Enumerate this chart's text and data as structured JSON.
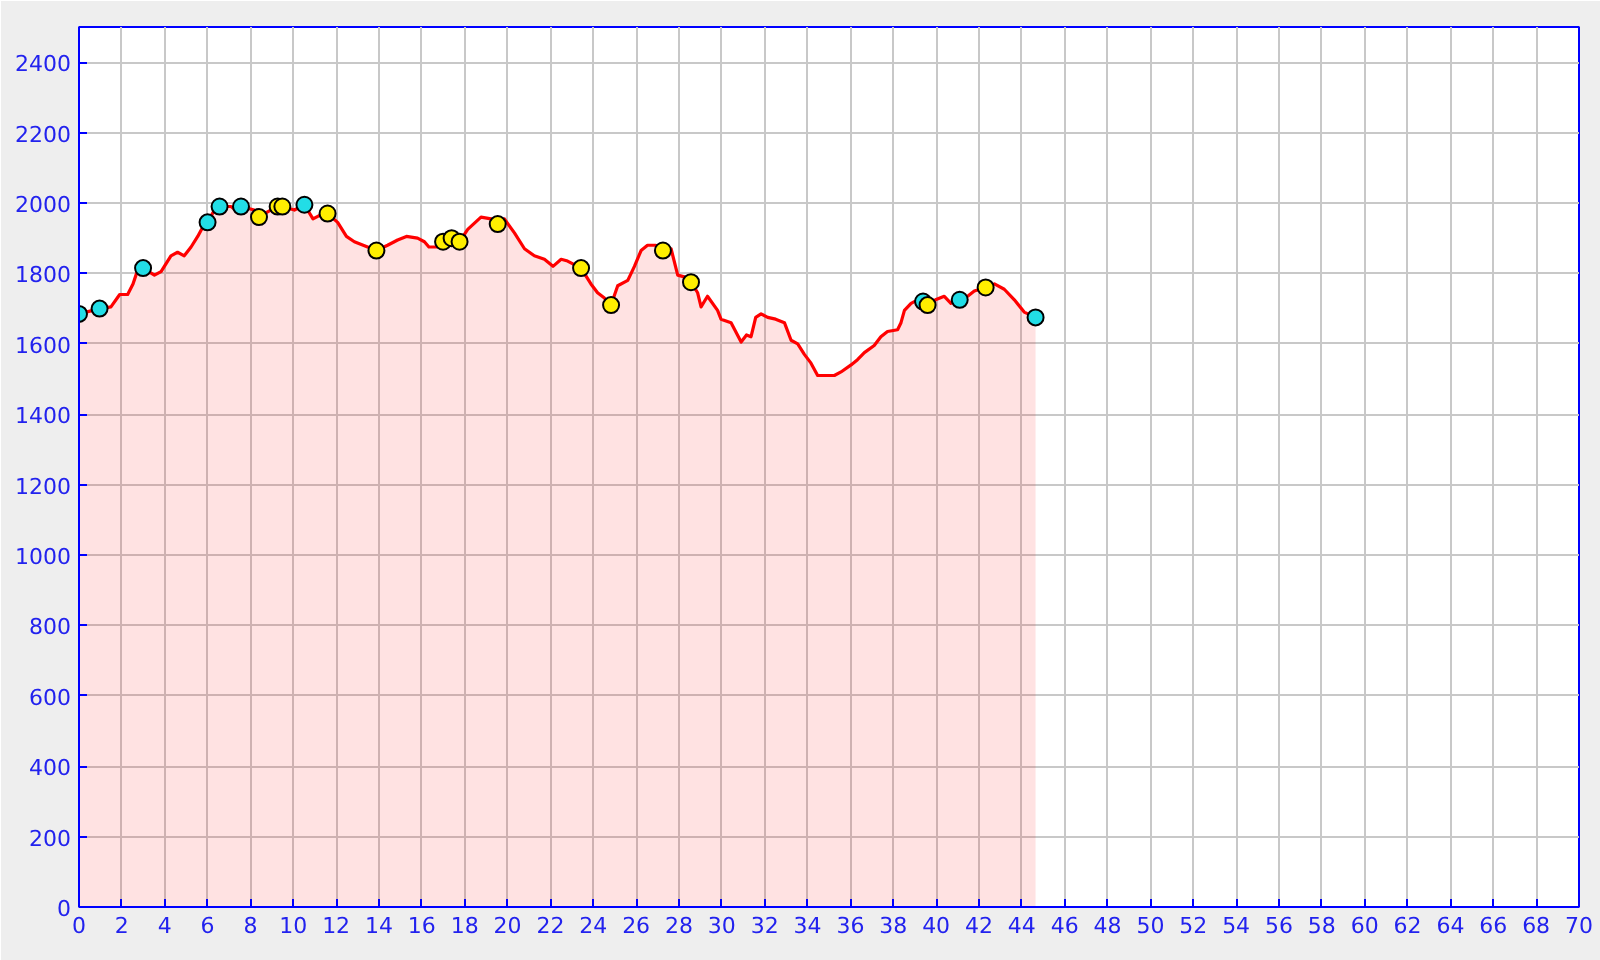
{
  "chart_data": {
    "type": "area",
    "xlim": [
      0,
      70
    ],
    "ylim": [
      0,
      2500
    ],
    "xticks": [
      0,
      2,
      4,
      6,
      8,
      10,
      12,
      14,
      16,
      18,
      20,
      22,
      24,
      26,
      28,
      30,
      32,
      34,
      36,
      38,
      40,
      42,
      44,
      46,
      48,
      50,
      52,
      54,
      56,
      58,
      60,
      62,
      64,
      66,
      68,
      70
    ],
    "yticks": [
      0,
      200,
      400,
      600,
      800,
      1000,
      1200,
      1400,
      1600,
      1800,
      2000,
      2200,
      2400
    ],
    "grid": true,
    "series": [
      {
        "color": "#ff0000",
        "line_style": "solid",
        "x": [
          0.0,
          0.96,
          1.49,
          1.9,
          2.27,
          2.52,
          2.74,
          2.99,
          3.52,
          3.83,
          4.29,
          4.6,
          4.91,
          5.23,
          5.54,
          5.76,
          6.0,
          6.32,
          6.56,
          7.09,
          7.31,
          7.56,
          8.18,
          8.4,
          8.8,
          9.27,
          9.49,
          10.05,
          10.52,
          10.92,
          11.23,
          11.6,
          12.07,
          12.48,
          12.85,
          13.47,
          13.88,
          14.4,
          14.87,
          15.28,
          15.8,
          16.12,
          16.33,
          16.74,
          16.99,
          17.39,
          17.76,
          18.14,
          18.76,
          19.23,
          19.54,
          19.85,
          20.32,
          20.79,
          21.25,
          21.72,
          22.12,
          22.5,
          22.8,
          23.43,
          23.89,
          24.2,
          24.52,
          24.83,
          25.14,
          25.61,
          25.92,
          26.23,
          26.53,
          26.91,
          27.25,
          27.63,
          27.94,
          28.25,
          28.56,
          28.87,
          29.03,
          29.33,
          29.8,
          29.96,
          30.43,
          30.9,
          31.15,
          31.36,
          31.58,
          31.83,
          32.14,
          32.51,
          32.92,
          33.23,
          33.54,
          33.85,
          34.16,
          34.47,
          35.25,
          35.56,
          36.03,
          36.33,
          36.65,
          37.11,
          37.42,
          37.73,
          38.2,
          38.36,
          38.52,
          38.83,
          39.14,
          39.39,
          39.6,
          39.97,
          40.38,
          40.69,
          41.1,
          41.47,
          41.78,
          42.31,
          42.72,
          43.18,
          43.65,
          44.11,
          44.64
        ],
        "values": [
          1685,
          1700,
          1705,
          1740,
          1740,
          1770,
          1810,
          1815,
          1795,
          1805,
          1850,
          1860,
          1850,
          1875,
          1905,
          1930,
          1945,
          1980,
          1990,
          1990,
          1980,
          1990,
          1980,
          1960,
          1975,
          1990,
          1990,
          1980,
          1995,
          1955,
          1965,
          1970,
          1945,
          1905,
          1890,
          1875,
          1865,
          1880,
          1895,
          1905,
          1900,
          1890,
          1875,
          1875,
          1890,
          1900,
          1890,
          1925,
          1960,
          1955,
          1940,
          1955,
          1915,
          1870,
          1850,
          1840,
          1820,
          1840,
          1835,
          1815,
          1770,
          1745,
          1730,
          1710,
          1765,
          1780,
          1820,
          1865,
          1880,
          1880,
          1865,
          1870,
          1795,
          1790,
          1775,
          1745,
          1705,
          1735,
          1695,
          1670,
          1660,
          1605,
          1625,
          1620,
          1675,
          1685,
          1675,
          1670,
          1660,
          1610,
          1600,
          1570,
          1545,
          1510,
          1510,
          1520,
          1540,
          1555,
          1575,
          1595,
          1620,
          1635,
          1640,
          1660,
          1695,
          1715,
          1725,
          1720,
          1710,
          1725,
          1735,
          1715,
          1725,
          1735,
          1750,
          1760,
          1770,
          1755,
          1725,
          1690,
          1675
        ]
      },
      {
        "type": "scatter",
        "color": "#22dde6",
        "marker": "circle",
        "x": [
          0.0,
          0.96,
          2.99,
          6.0,
          6.56,
          7.56,
          10.52,
          39.39,
          41.1,
          44.64
        ],
        "values": [
          1685,
          1700,
          1815,
          1945,
          1990,
          1990,
          1995,
          1720,
          1725,
          1675
        ]
      },
      {
        "type": "scatter",
        "color": "#ffee00",
        "marker": "circle",
        "x": [
          8.4,
          9.27,
          9.49,
          11.6,
          13.88,
          16.99,
          17.39,
          17.76,
          19.54,
          23.43,
          24.83,
          27.25,
          28.56,
          39.6,
          42.31
        ],
        "values": [
          1960,
          1990,
          1990,
          1970,
          1865,
          1890,
          1900,
          1890,
          1940,
          1815,
          1710,
          1865,
          1775,
          1710,
          1760
        ]
      }
    ]
  }
}
